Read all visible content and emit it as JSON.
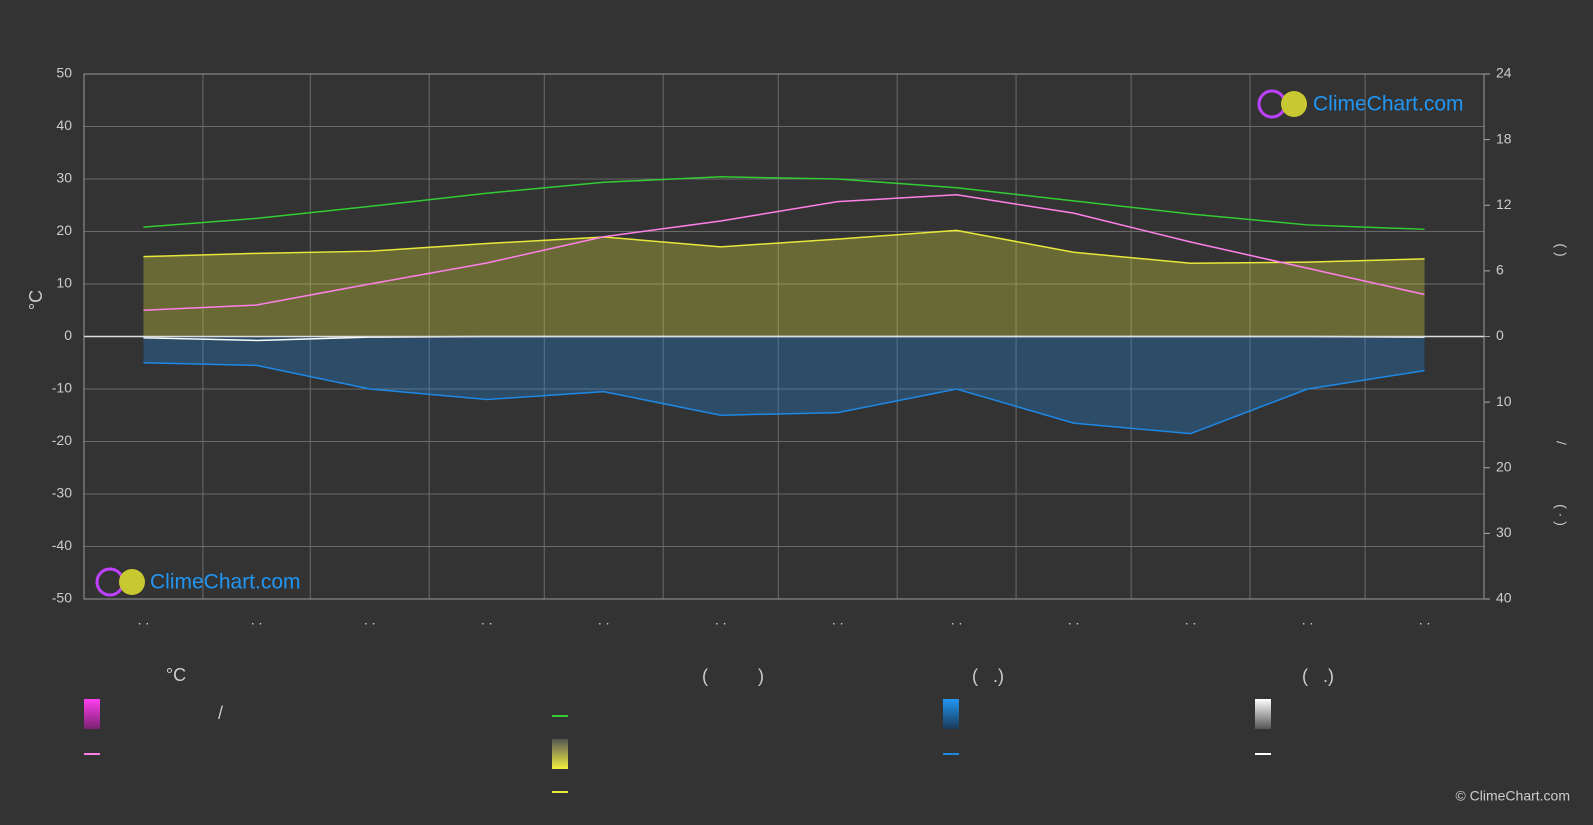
{
  "chart_data": {
    "type": "line",
    "categories": [
      ". .",
      ". .",
      ". .",
      ". .",
      ". .",
      ". .",
      ". .",
      ". .",
      ". .",
      ". .",
      ". .",
      ". ."
    ],
    "y_label": "°C",
    "right_axis_labels": [
      "(   )",
      "/",
      "( · )"
    ],
    "ylim": [
      -50,
      50
    ],
    "yticks": [
      -50,
      -40,
      -30,
      -20,
      -10,
      0,
      10,
      20,
      30,
      40,
      50
    ],
    "y2lim": [
      -24,
      24
    ],
    "y2ticks": [
      0,
      6,
      12,
      18,
      24
    ],
    "y3lim": [
      40,
      -40
    ],
    "y3ticks": [
      10,
      20,
      30,
      40
    ],
    "grid": true,
    "series": [
      {
        "color": "#33cc33",
        "axis": "y2",
        "values": [
          10.0,
          10.8,
          11.9,
          13.1,
          14.1,
          14.6,
          14.4,
          13.6,
          12.4,
          11.2,
          10.2,
          9.8
        ]
      },
      {
        "color": "#e8e83c",
        "axis": "y2",
        "fill": true,
        "values": [
          7.3,
          7.6,
          7.8,
          8.5,
          9.1,
          8.2,
          8.9,
          9.7,
          7.7,
          6.7,
          6.8,
          7.1
        ]
      },
      {
        "color": "#ff80e8",
        "axis": "y",
        "values": [
          5,
          6,
          10,
          14,
          19,
          22,
          25.7,
          27,
          23.5,
          18,
          13,
          8
        ]
      },
      {
        "color": "#1e88e5",
        "axis": "y3",
        "fill": true,
        "values": [
          4.0,
          4.4,
          8.0,
          9.6,
          8.4,
          12.0,
          11.6,
          8.0,
          13.2,
          14.8,
          8.0,
          5.2
        ]
      },
      {
        "color": "#ffffff",
        "axis": "y3",
        "values": [
          0.2,
          0.6,
          0.1,
          0,
          0,
          0,
          0,
          0,
          0,
          0,
          0,
          0.1
        ]
      }
    ],
    "legend_headers": [
      "°C",
      "(          )",
      "(   .)",
      "(   .)"
    ],
    "legend_texts": [
      "/"
    ],
    "watermark": "ClimeChart.com",
    "copyright": "© ClimeChart.com"
  }
}
